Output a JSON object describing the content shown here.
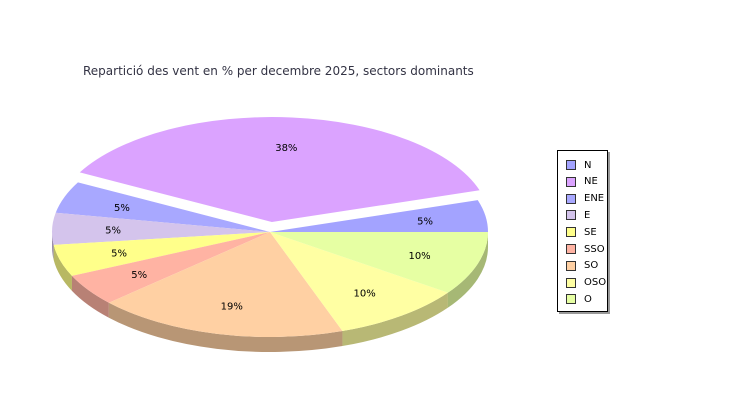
{
  "chart_data": {
    "type": "pie",
    "title": "Repartició des vent en % per decembre 2025, sectors dominants",
    "categories": [
      "N",
      "NE",
      "ENE",
      "E",
      "SE",
      "SSO",
      "SO",
      "OSO",
      "O"
    ],
    "values": [
      5,
      38,
      5,
      5,
      5,
      5,
      19,
      10,
      10
    ],
    "labels": [
      "5%",
      "38%",
      "5%",
      "5%",
      "5%",
      "5%",
      "19%",
      "10%",
      "10%"
    ],
    "colors": [
      "#a3a3ff",
      "#dba3ff",
      "#a8a8ff",
      "#d4c4ec",
      "#ffff8a",
      "#ffb3a3",
      "#ffd0a3",
      "#ffffa3",
      "#e6ffa3"
    ],
    "exploded": "NE",
    "legend": "right",
    "style": "3d"
  }
}
